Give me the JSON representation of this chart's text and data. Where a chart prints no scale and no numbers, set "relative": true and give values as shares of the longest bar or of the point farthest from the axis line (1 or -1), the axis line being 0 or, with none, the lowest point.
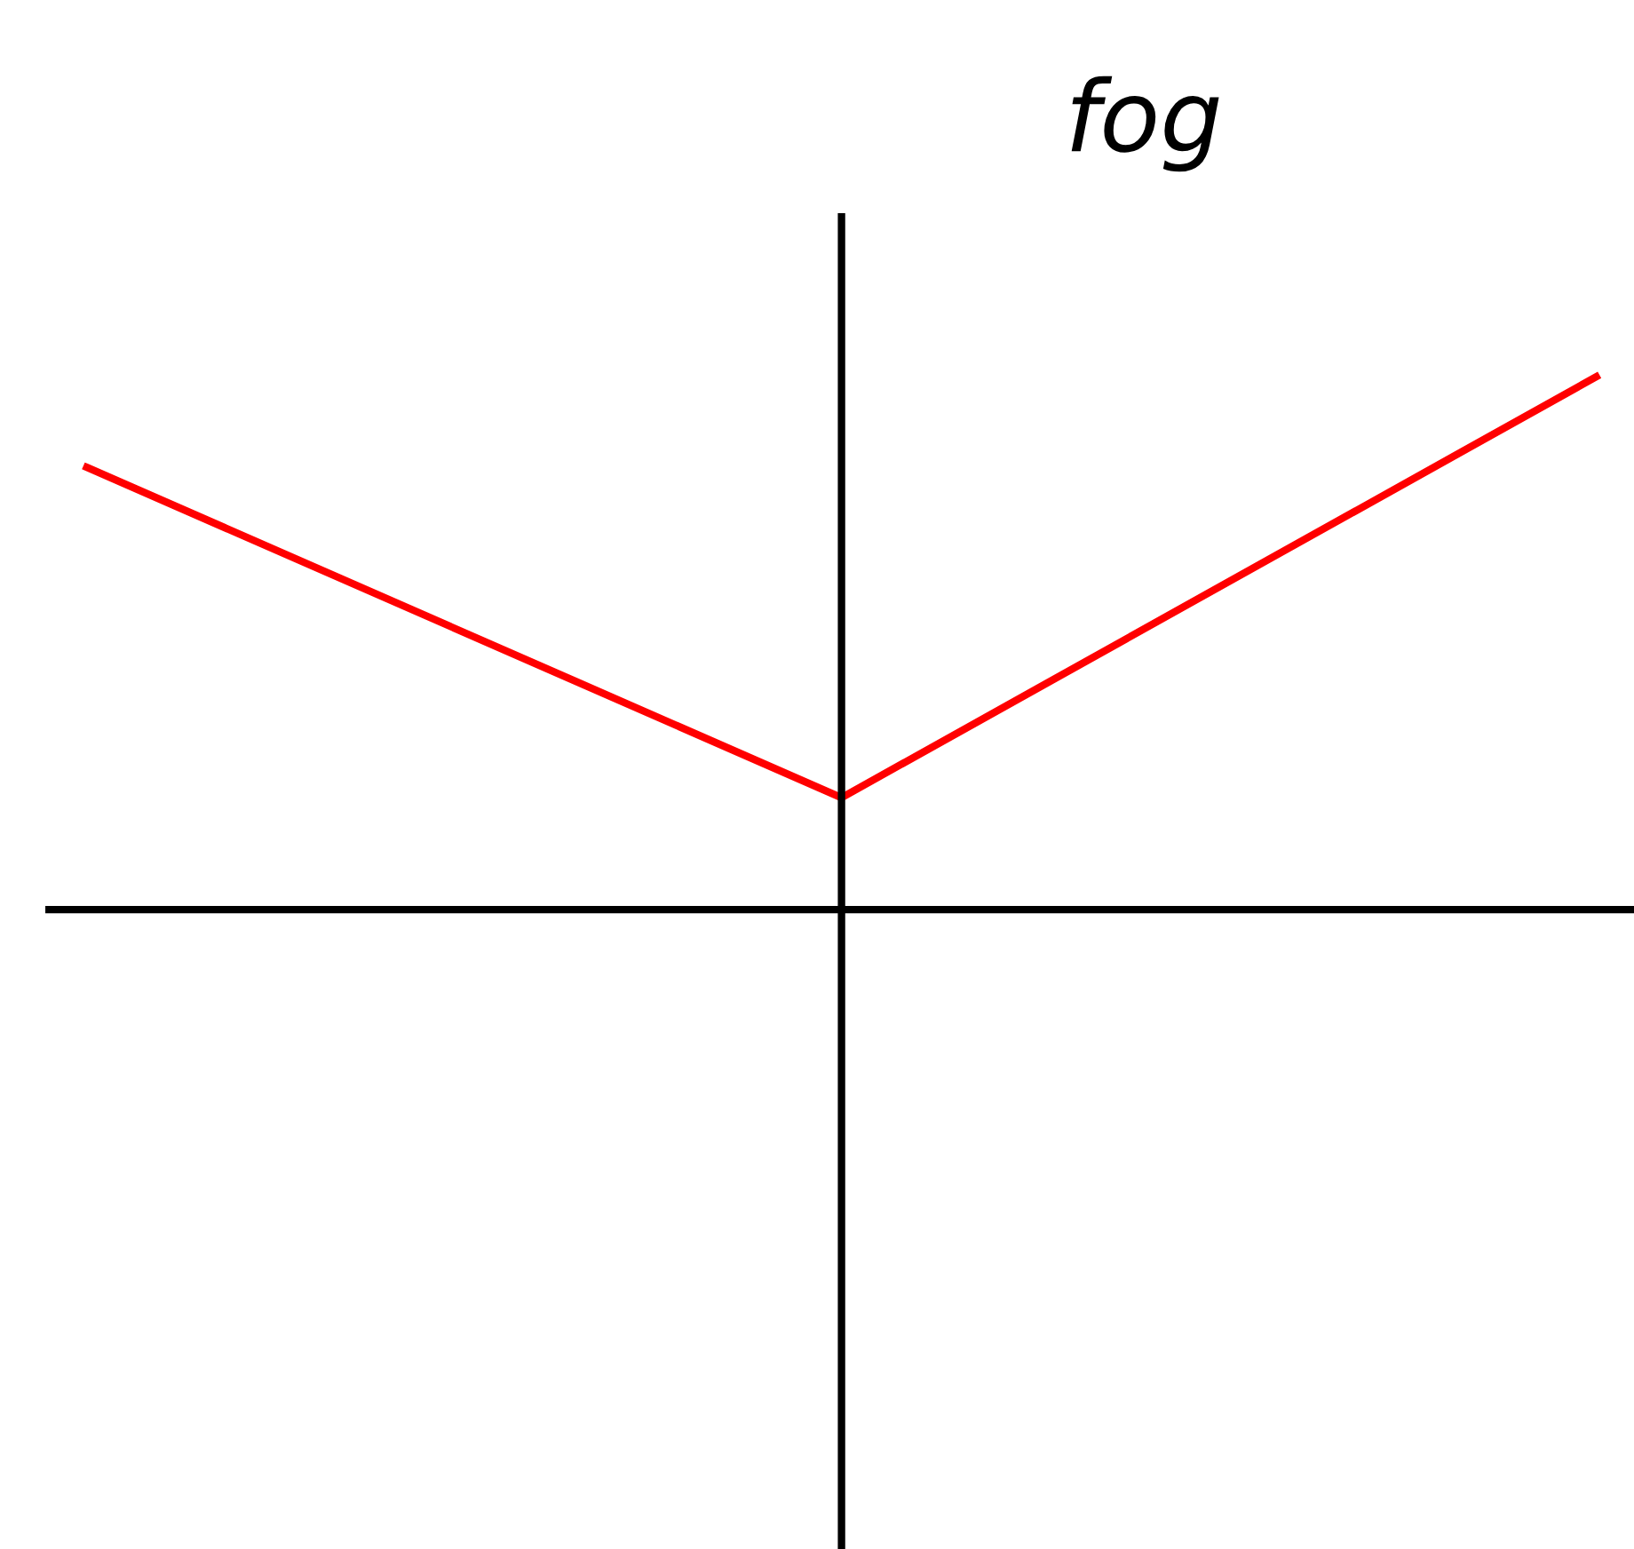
{
  "chart_data": {
    "type": "line",
    "title": "fog",
    "relative": true,
    "categories": [
      null,
      null,
      null
    ],
    "series": [
      {
        "color": "#ff0000",
        "values": [
          0.83,
          0.21,
          1
        ]
      }
    ],
    "grid": false,
    "legend": false
  }
}
